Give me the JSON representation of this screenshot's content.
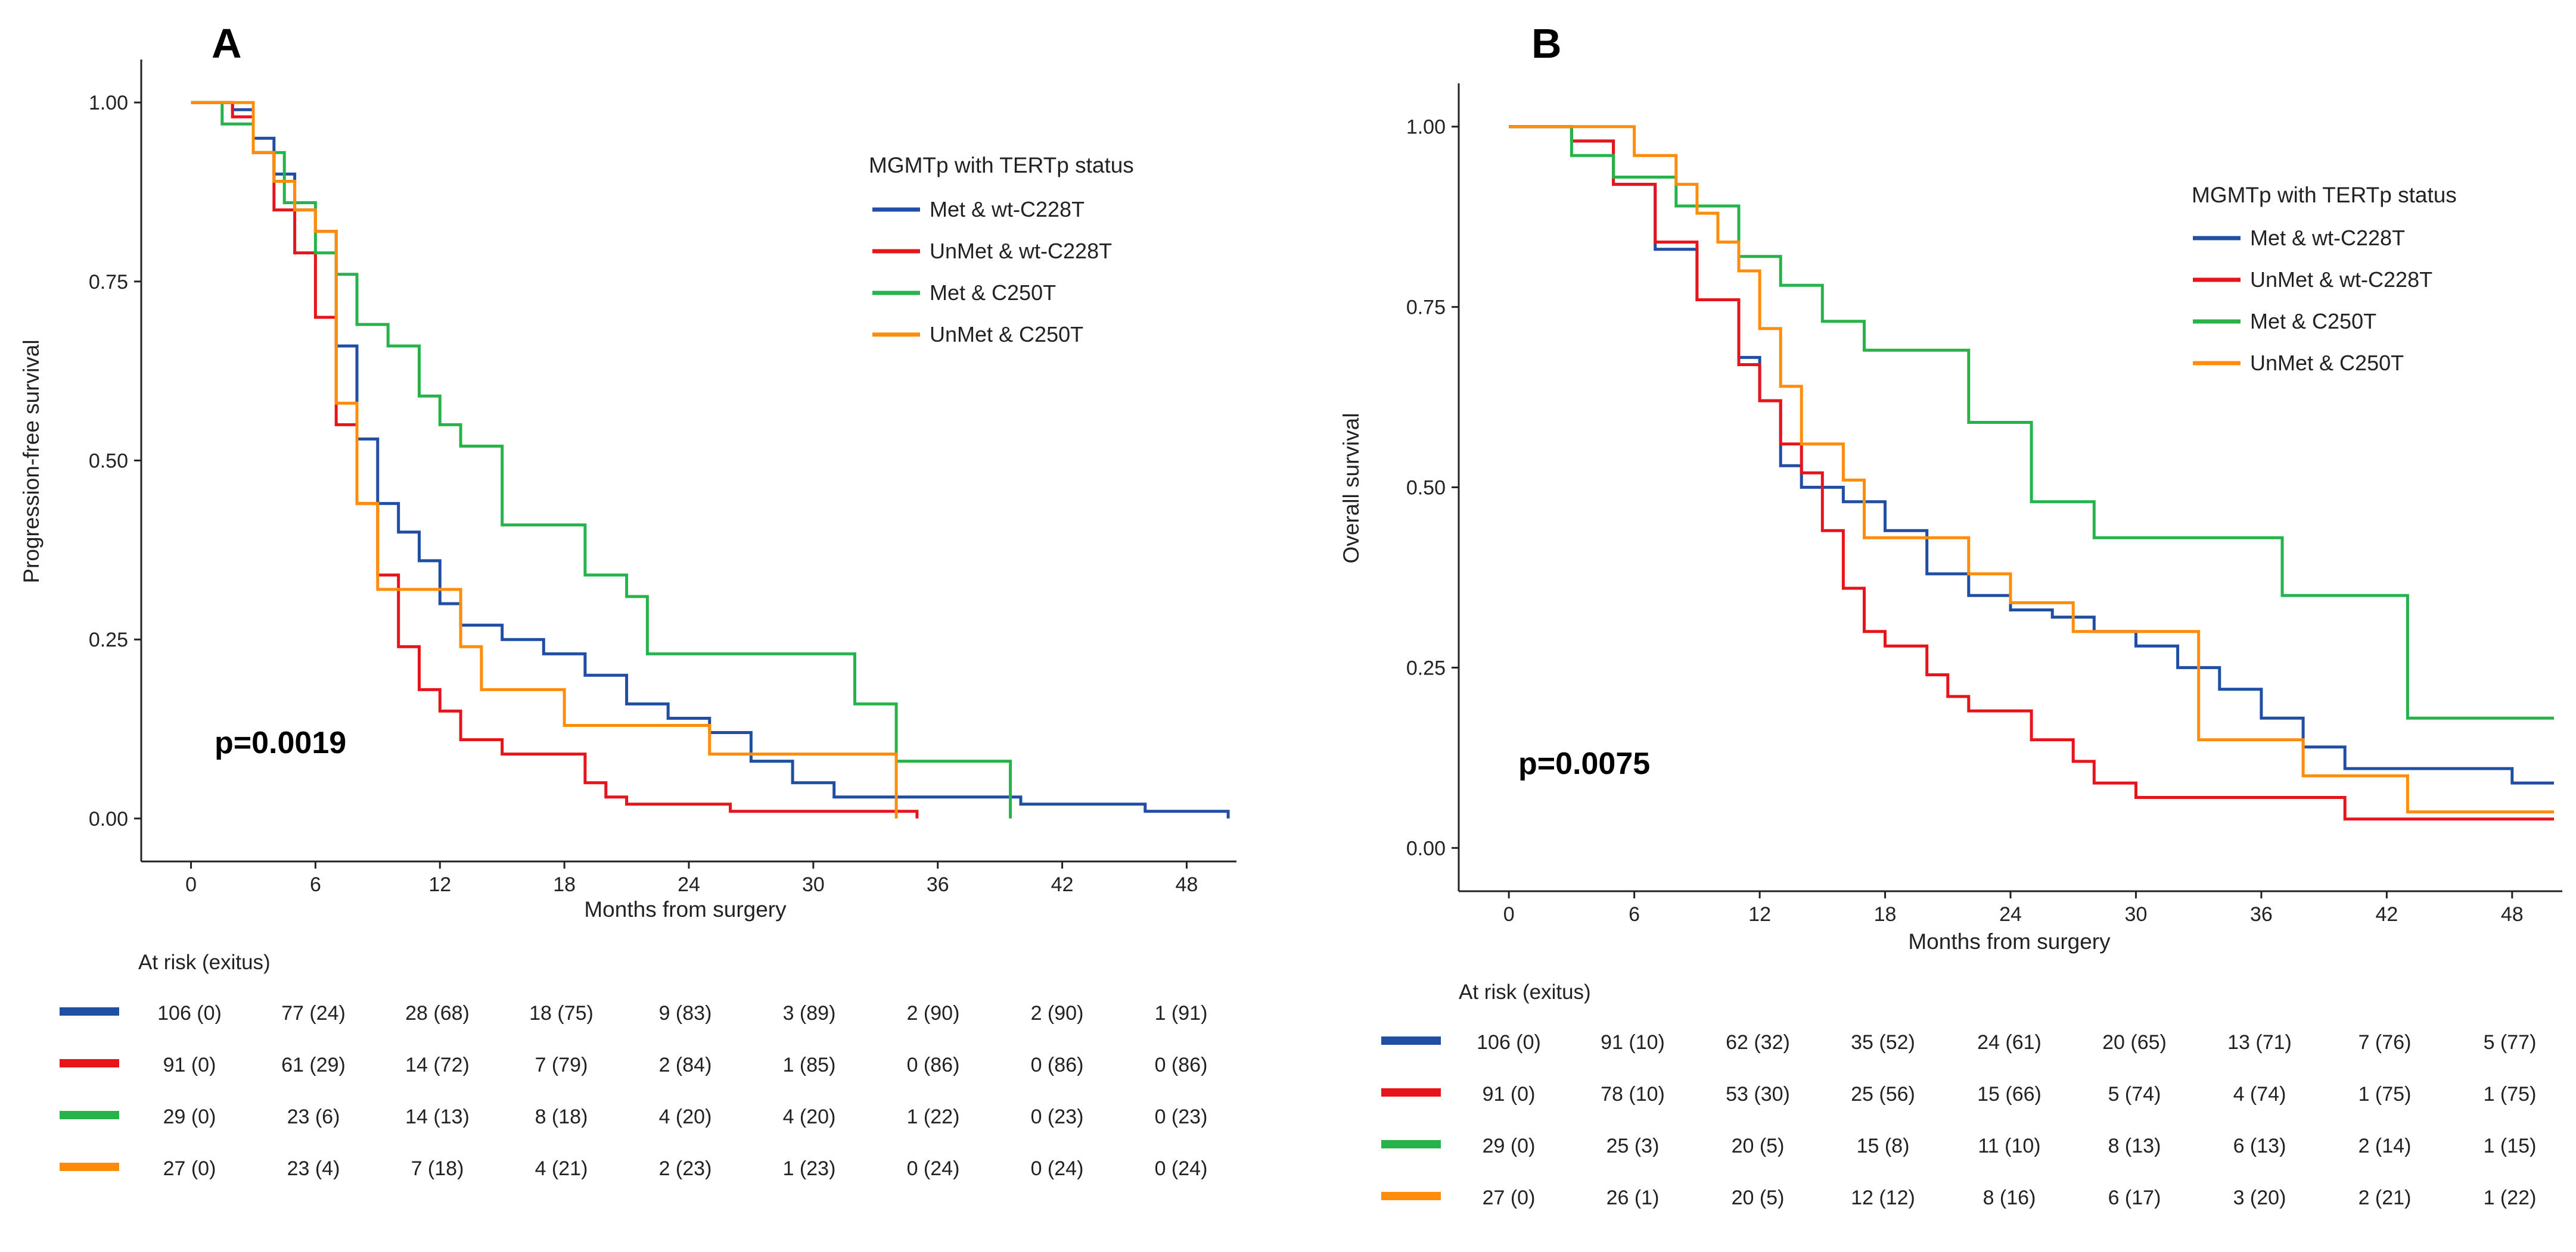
{
  "legend_title": "MGMTp with TERTp status",
  "risk_title": "At risk (exitus)",
  "xlabel": "Months from surgery",
  "colors": {
    "Met & wt-C228T": "#1f4ea3",
    "UnMet & wt-C228T": "#e8141c",
    "Met & C250T": "#27b34b",
    "UnMet & C250T": "#ff8c0a"
  },
  "chart_data": [
    {
      "type": "line",
      "step": true,
      "panel": "A",
      "title": "",
      "xlabel": "Months from surgery",
      "ylabel": "Progression-free survival",
      "xlim": [
        -2.4,
        50.4
      ],
      "ylim": [
        -0.06,
        1.06
      ],
      "xticks": [
        "0",
        "6",
        "12",
        "18",
        "24",
        "30",
        "36",
        "42",
        "48"
      ],
      "yticks": [
        "0.00",
        "0.25",
        "0.50",
        "0.75",
        "1.00"
      ],
      "legend_title": "MGMTp with TERTp status",
      "annotation": "p=0.0019",
      "series": [
        {
          "name": "Met & wt-C228T",
          "x": [
            0,
            2,
            3,
            4,
            5,
            6,
            7,
            8,
            9,
            10,
            11,
            12,
            13,
            15,
            17,
            19,
            21,
            23,
            25,
            27,
            29,
            31,
            36,
            40,
            46,
            50
          ],
          "y": [
            1.0,
            0.99,
            0.95,
            0.9,
            0.85,
            0.82,
            0.66,
            0.53,
            0.44,
            0.4,
            0.36,
            0.3,
            0.27,
            0.25,
            0.23,
            0.2,
            0.16,
            0.14,
            0.12,
            0.08,
            0.05,
            0.03,
            0.03,
            0.02,
            0.01,
            0.0
          ]
        },
        {
          "name": "UnMet & wt-C228T",
          "x": [
            0,
            2,
            3,
            4,
            5,
            6,
            7,
            8,
            9,
            10,
            11,
            12,
            13,
            14,
            15,
            17,
            19,
            20,
            21,
            26,
            35
          ],
          "y": [
            1.0,
            0.98,
            0.93,
            0.85,
            0.79,
            0.7,
            0.55,
            0.44,
            0.34,
            0.24,
            0.18,
            0.15,
            0.11,
            0.11,
            0.09,
            0.09,
            0.05,
            0.03,
            0.02,
            0.01,
            0.0
          ]
        },
        {
          "name": "Met & C250T",
          "x": [
            0,
            1.5,
            3,
            4.5,
            6,
            7,
            8,
            9.5,
            11,
            12,
            13,
            15,
            19,
            21,
            22,
            24,
            27,
            32,
            34,
            35,
            39.5
          ],
          "y": [
            1.0,
            0.97,
            0.93,
            0.86,
            0.79,
            0.76,
            0.69,
            0.66,
            0.59,
            0.55,
            0.52,
            0.41,
            0.34,
            0.31,
            0.23,
            0.23,
            0.23,
            0.16,
            0.08,
            0.08,
            0.0
          ]
        },
        {
          "name": "UnMet & C250T",
          "x": [
            0,
            3,
            4,
            5,
            6,
            7,
            8,
            9,
            12,
            13,
            14,
            18,
            22,
            25,
            29,
            34
          ],
          "y": [
            1.0,
            0.93,
            0.89,
            0.85,
            0.82,
            0.58,
            0.44,
            0.32,
            0.32,
            0.24,
            0.18,
            0.13,
            0.13,
            0.09,
            0.09,
            0.0
          ]
        }
      ],
      "risk_table": [
        {
          "group": "Met & wt-C228T",
          "values": [
            "106 (0)",
            "77 (24)",
            "28 (68)",
            "18 (75)",
            "9 (83)",
            "3 (89)",
            "2 (90)",
            "2 (90)",
            "1 (91)"
          ]
        },
        {
          "group": "UnMet & wt-C228T",
          "values": [
            "91 (0)",
            "61 (29)",
            "14 (72)",
            "7 (79)",
            "2 (84)",
            "1 (85)",
            "0 (86)",
            "0 (86)",
            "0 (86)"
          ]
        },
        {
          "group": "Met & C250T",
          "values": [
            "29 (0)",
            "23 (6)",
            "14 (13)",
            "8 (18)",
            "4 (20)",
            "4 (20)",
            "1 (22)",
            "0 (23)",
            "0 (23)"
          ]
        },
        {
          "group": "UnMet & C250T",
          "values": [
            "27 (0)",
            "23 (4)",
            "7 (18)",
            "4 (21)",
            "2 (23)",
            "1 (23)",
            "0 (24)",
            "0 (24)",
            "0 (24)"
          ]
        }
      ]
    },
    {
      "type": "line",
      "step": true,
      "panel": "B",
      "title": "",
      "xlabel": "Months from surgery",
      "ylabel": "Overall survival",
      "xlim": [
        -2.4,
        50.4
      ],
      "ylim": [
        -0.06,
        1.06
      ],
      "xticks": [
        "0",
        "6",
        "12",
        "18",
        "24",
        "30",
        "36",
        "42",
        "48"
      ],
      "yticks": [
        "0.00",
        "0.25",
        "0.50",
        "0.75",
        "1.00"
      ],
      "legend_title": "MGMTp with TERTp status",
      "annotation": "p=0.0075",
      "series": [
        {
          "name": "Met & wt-C228T",
          "x": [
            0,
            3,
            5,
            7,
            9,
            11,
            12,
            13,
            14,
            16,
            18,
            20,
            22,
            24,
            26,
            28,
            30,
            32,
            34,
            36,
            38,
            40,
            45,
            48,
            50
          ],
          "y": [
            1.0,
            0.98,
            0.92,
            0.83,
            0.76,
            0.68,
            0.62,
            0.53,
            0.5,
            0.48,
            0.44,
            0.38,
            0.35,
            0.33,
            0.32,
            0.3,
            0.28,
            0.25,
            0.22,
            0.18,
            0.14,
            0.11,
            0.11,
            0.09,
            0.09
          ]
        },
        {
          "name": "UnMet & wt-C228T",
          "x": [
            0,
            3,
            5,
            7,
            9,
            11,
            12,
            13,
            14,
            15,
            16,
            17,
            18,
            20,
            21,
            22,
            23,
            25,
            26,
            27,
            28,
            30,
            36,
            40,
            44,
            50
          ],
          "y": [
            1.0,
            0.98,
            0.92,
            0.84,
            0.76,
            0.67,
            0.62,
            0.56,
            0.52,
            0.44,
            0.36,
            0.3,
            0.28,
            0.24,
            0.21,
            0.19,
            0.19,
            0.15,
            0.15,
            0.12,
            0.09,
            0.07,
            0.07,
            0.04,
            0.04,
            0.04
          ]
        },
        {
          "name": "Met & C250T",
          "x": [
            0,
            3,
            5,
            8,
            11,
            13,
            15,
            17,
            20,
            22,
            25,
            28,
            31,
            37,
            40,
            43,
            46,
            50
          ],
          "y": [
            1.0,
            0.96,
            0.93,
            0.89,
            0.82,
            0.78,
            0.73,
            0.69,
            0.69,
            0.59,
            0.48,
            0.43,
            0.43,
            0.35,
            0.35,
            0.18,
            0.18,
            0.18
          ]
        },
        {
          "name": "UnMet & C250T",
          "x": [
            0,
            6,
            8,
            9,
            10,
            11,
            12,
            13,
            14,
            16,
            17,
            20,
            22,
            24,
            27,
            29,
            31,
            33,
            35,
            38,
            40,
            43,
            50
          ],
          "y": [
            1.0,
            0.96,
            0.92,
            0.88,
            0.84,
            0.8,
            0.72,
            0.64,
            0.56,
            0.51,
            0.43,
            0.43,
            0.38,
            0.34,
            0.3,
            0.3,
            0.3,
            0.15,
            0.15,
            0.1,
            0.1,
            0.05,
            0.05
          ]
        }
      ],
      "risk_table": [
        {
          "group": "Met & wt-C228T",
          "values": [
            "106 (0)",
            "91 (10)",
            "62 (32)",
            "35 (52)",
            "24 (61)",
            "20 (65)",
            "13 (71)",
            "7 (76)",
            "5 (77)"
          ]
        },
        {
          "group": "UnMet & wt-C228T",
          "values": [
            "91 (0)",
            "78 (10)",
            "53 (30)",
            "25 (56)",
            "15 (66)",
            "5 (74)",
            "4 (74)",
            "1 (75)",
            "1 (75)"
          ]
        },
        {
          "group": "Met & C250T",
          "values": [
            "29 (0)",
            "25 (3)",
            "20 (5)",
            "15 (8)",
            "11 (10)",
            "8 (13)",
            "6 (13)",
            "2 (14)",
            "1 (15)"
          ]
        },
        {
          "group": "UnMet & C250T",
          "values": [
            "27 (0)",
            "26 (1)",
            "20 (5)",
            "12 (12)",
            "8 (16)",
            "6 (17)",
            "3 (20)",
            "2 (21)",
            "1 (22)"
          ]
        }
      ]
    }
  ]
}
